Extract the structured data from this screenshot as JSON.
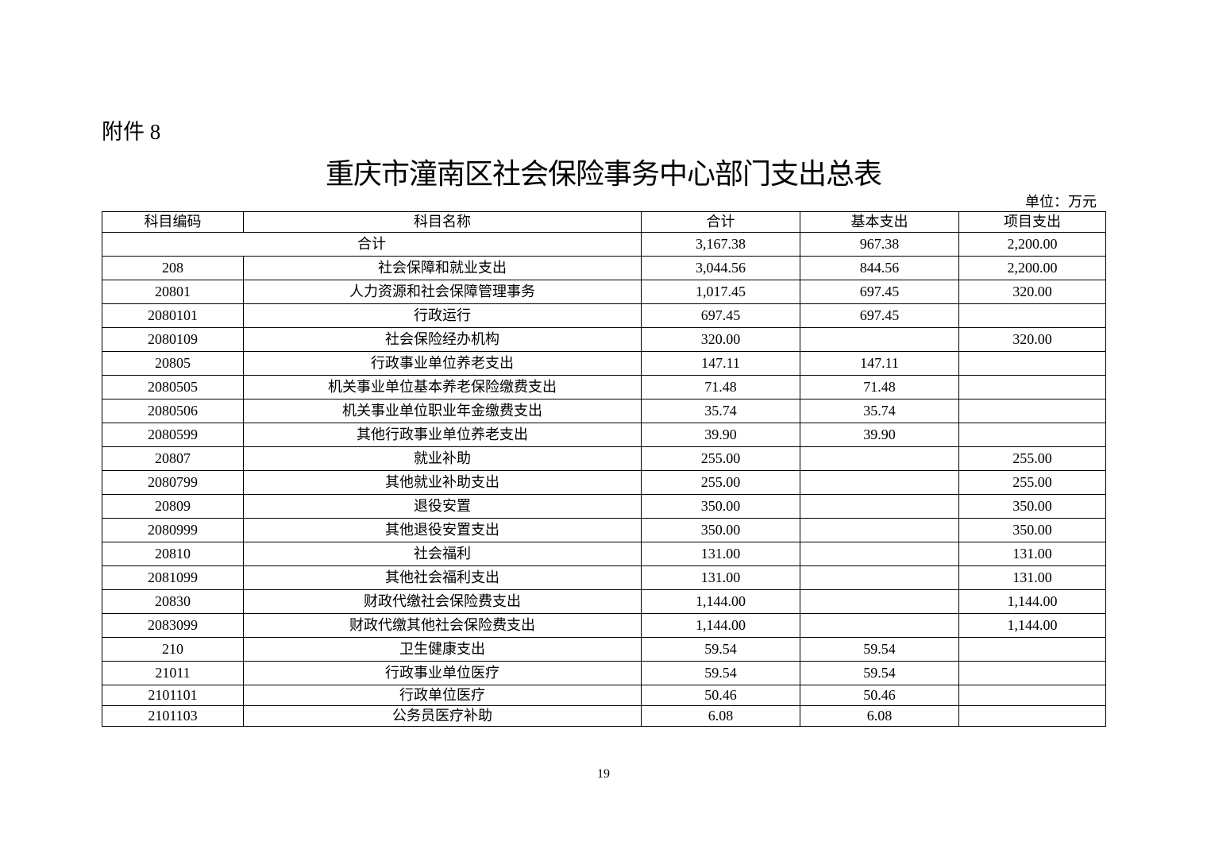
{
  "attachment_label": "附件 8",
  "title": "重庆市潼南区社会保险事务中心部门支出总表",
  "unit": "单位：万元",
  "table": {
    "headers": [
      "科目编码",
      "科目名称",
      "合计",
      "基本支出",
      "项目支出"
    ],
    "total": {
      "label": "合计",
      "total": "3,167.38",
      "basic": "967.38",
      "project": "2,200.00"
    },
    "rows": [
      {
        "code": "208",
        "name": "社会保障和就业支出",
        "total": "3,044.56",
        "basic": "844.56",
        "project": "2,200.00"
      },
      {
        "code": "20801",
        "name": "人力资源和社会保障管理事务",
        "total": "1,017.45",
        "basic": "697.45",
        "project": "320.00"
      },
      {
        "code": "2080101",
        "name": "行政运行",
        "total": "697.45",
        "basic": "697.45",
        "project": ""
      },
      {
        "code": "2080109",
        "name": "社会保险经办机构",
        "total": "320.00",
        "basic": "",
        "project": "320.00"
      },
      {
        "code": "20805",
        "name": "行政事业单位养老支出",
        "total": "147.11",
        "basic": "147.11",
        "project": ""
      },
      {
        "code": "2080505",
        "name": "机关事业单位基本养老保险缴费支出",
        "total": "71.48",
        "basic": "71.48",
        "project": ""
      },
      {
        "code": "2080506",
        "name": "机关事业单位职业年金缴费支出",
        "total": "35.74",
        "basic": "35.74",
        "project": ""
      },
      {
        "code": "2080599",
        "name": "其他行政事业单位养老支出",
        "total": "39.90",
        "basic": "39.90",
        "project": ""
      },
      {
        "code": "20807",
        "name": "就业补助",
        "total": "255.00",
        "basic": "",
        "project": "255.00"
      },
      {
        "code": "2080799",
        "name": "其他就业补助支出",
        "total": "255.00",
        "basic": "",
        "project": "255.00"
      },
      {
        "code": "20809",
        "name": "退役安置",
        "total": "350.00",
        "basic": "",
        "project": "350.00"
      },
      {
        "code": "2080999",
        "name": "其他退役安置支出",
        "total": "350.00",
        "basic": "",
        "project": "350.00"
      },
      {
        "code": "20810",
        "name": "社会福利",
        "total": "131.00",
        "basic": "",
        "project": "131.00"
      },
      {
        "code": "2081099",
        "name": "其他社会福利支出",
        "total": "131.00",
        "basic": "",
        "project": "131.00"
      },
      {
        "code": "20830",
        "name": "财政代缴社会保险费支出",
        "total": "1,144.00",
        "basic": "",
        "project": "1,144.00"
      },
      {
        "code": "2083099",
        "name": "财政代缴其他社会保险费支出",
        "total": "1,144.00",
        "basic": "",
        "project": "1,144.00"
      },
      {
        "code": "210",
        "name": "卫生健康支出",
        "total": "59.54",
        "basic": "59.54",
        "project": ""
      },
      {
        "code": "21011",
        "name": "行政事业单位医疗",
        "total": "59.54",
        "basic": "59.54",
        "project": ""
      },
      {
        "code": "2101101",
        "name": "行政单位医疗",
        "total": "50.46",
        "basic": "50.46",
        "project": ""
      },
      {
        "code": "2101103",
        "name": "公务员医疗补助",
        "total": "6.08",
        "basic": "6.08",
        "project": ""
      }
    ]
  },
  "page_number": "19"
}
